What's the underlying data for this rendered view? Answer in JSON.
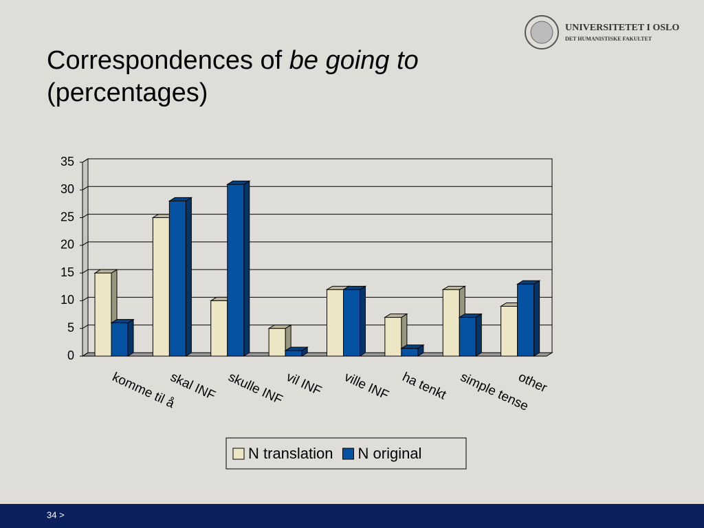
{
  "slide": {
    "title_parts": [
      "Correspondences of ",
      "be going to",
      "(percentages)"
    ],
    "logo": [
      "UNIVERSITETET I OSLO",
      "DET HUMANISTISKE FAKULTET"
    ],
    "footer": "34 >"
  },
  "chart_data": {
    "type": "bar3d",
    "categories": [
      "komme til å",
      "skal INF",
      "skulle INF",
      "vil INF",
      "ville INF",
      "ha tenkt",
      "simple tense",
      "other"
    ],
    "series": [
      {
        "name": "N translation",
        "color": "#ece6c4",
        "values": [
          15,
          25,
          10,
          5,
          12,
          7,
          12,
          9
        ]
      },
      {
        "name": "N original",
        "color": "#0552a2",
        "values": [
          6,
          28,
          31,
          1,
          12,
          1.4,
          7,
          13
        ]
      }
    ],
    "ylim": [
      0,
      35
    ],
    "yticks": [
      0,
      5,
      10,
      15,
      20,
      25,
      30,
      35
    ],
    "grid": true,
    "legend": "bottom"
  }
}
